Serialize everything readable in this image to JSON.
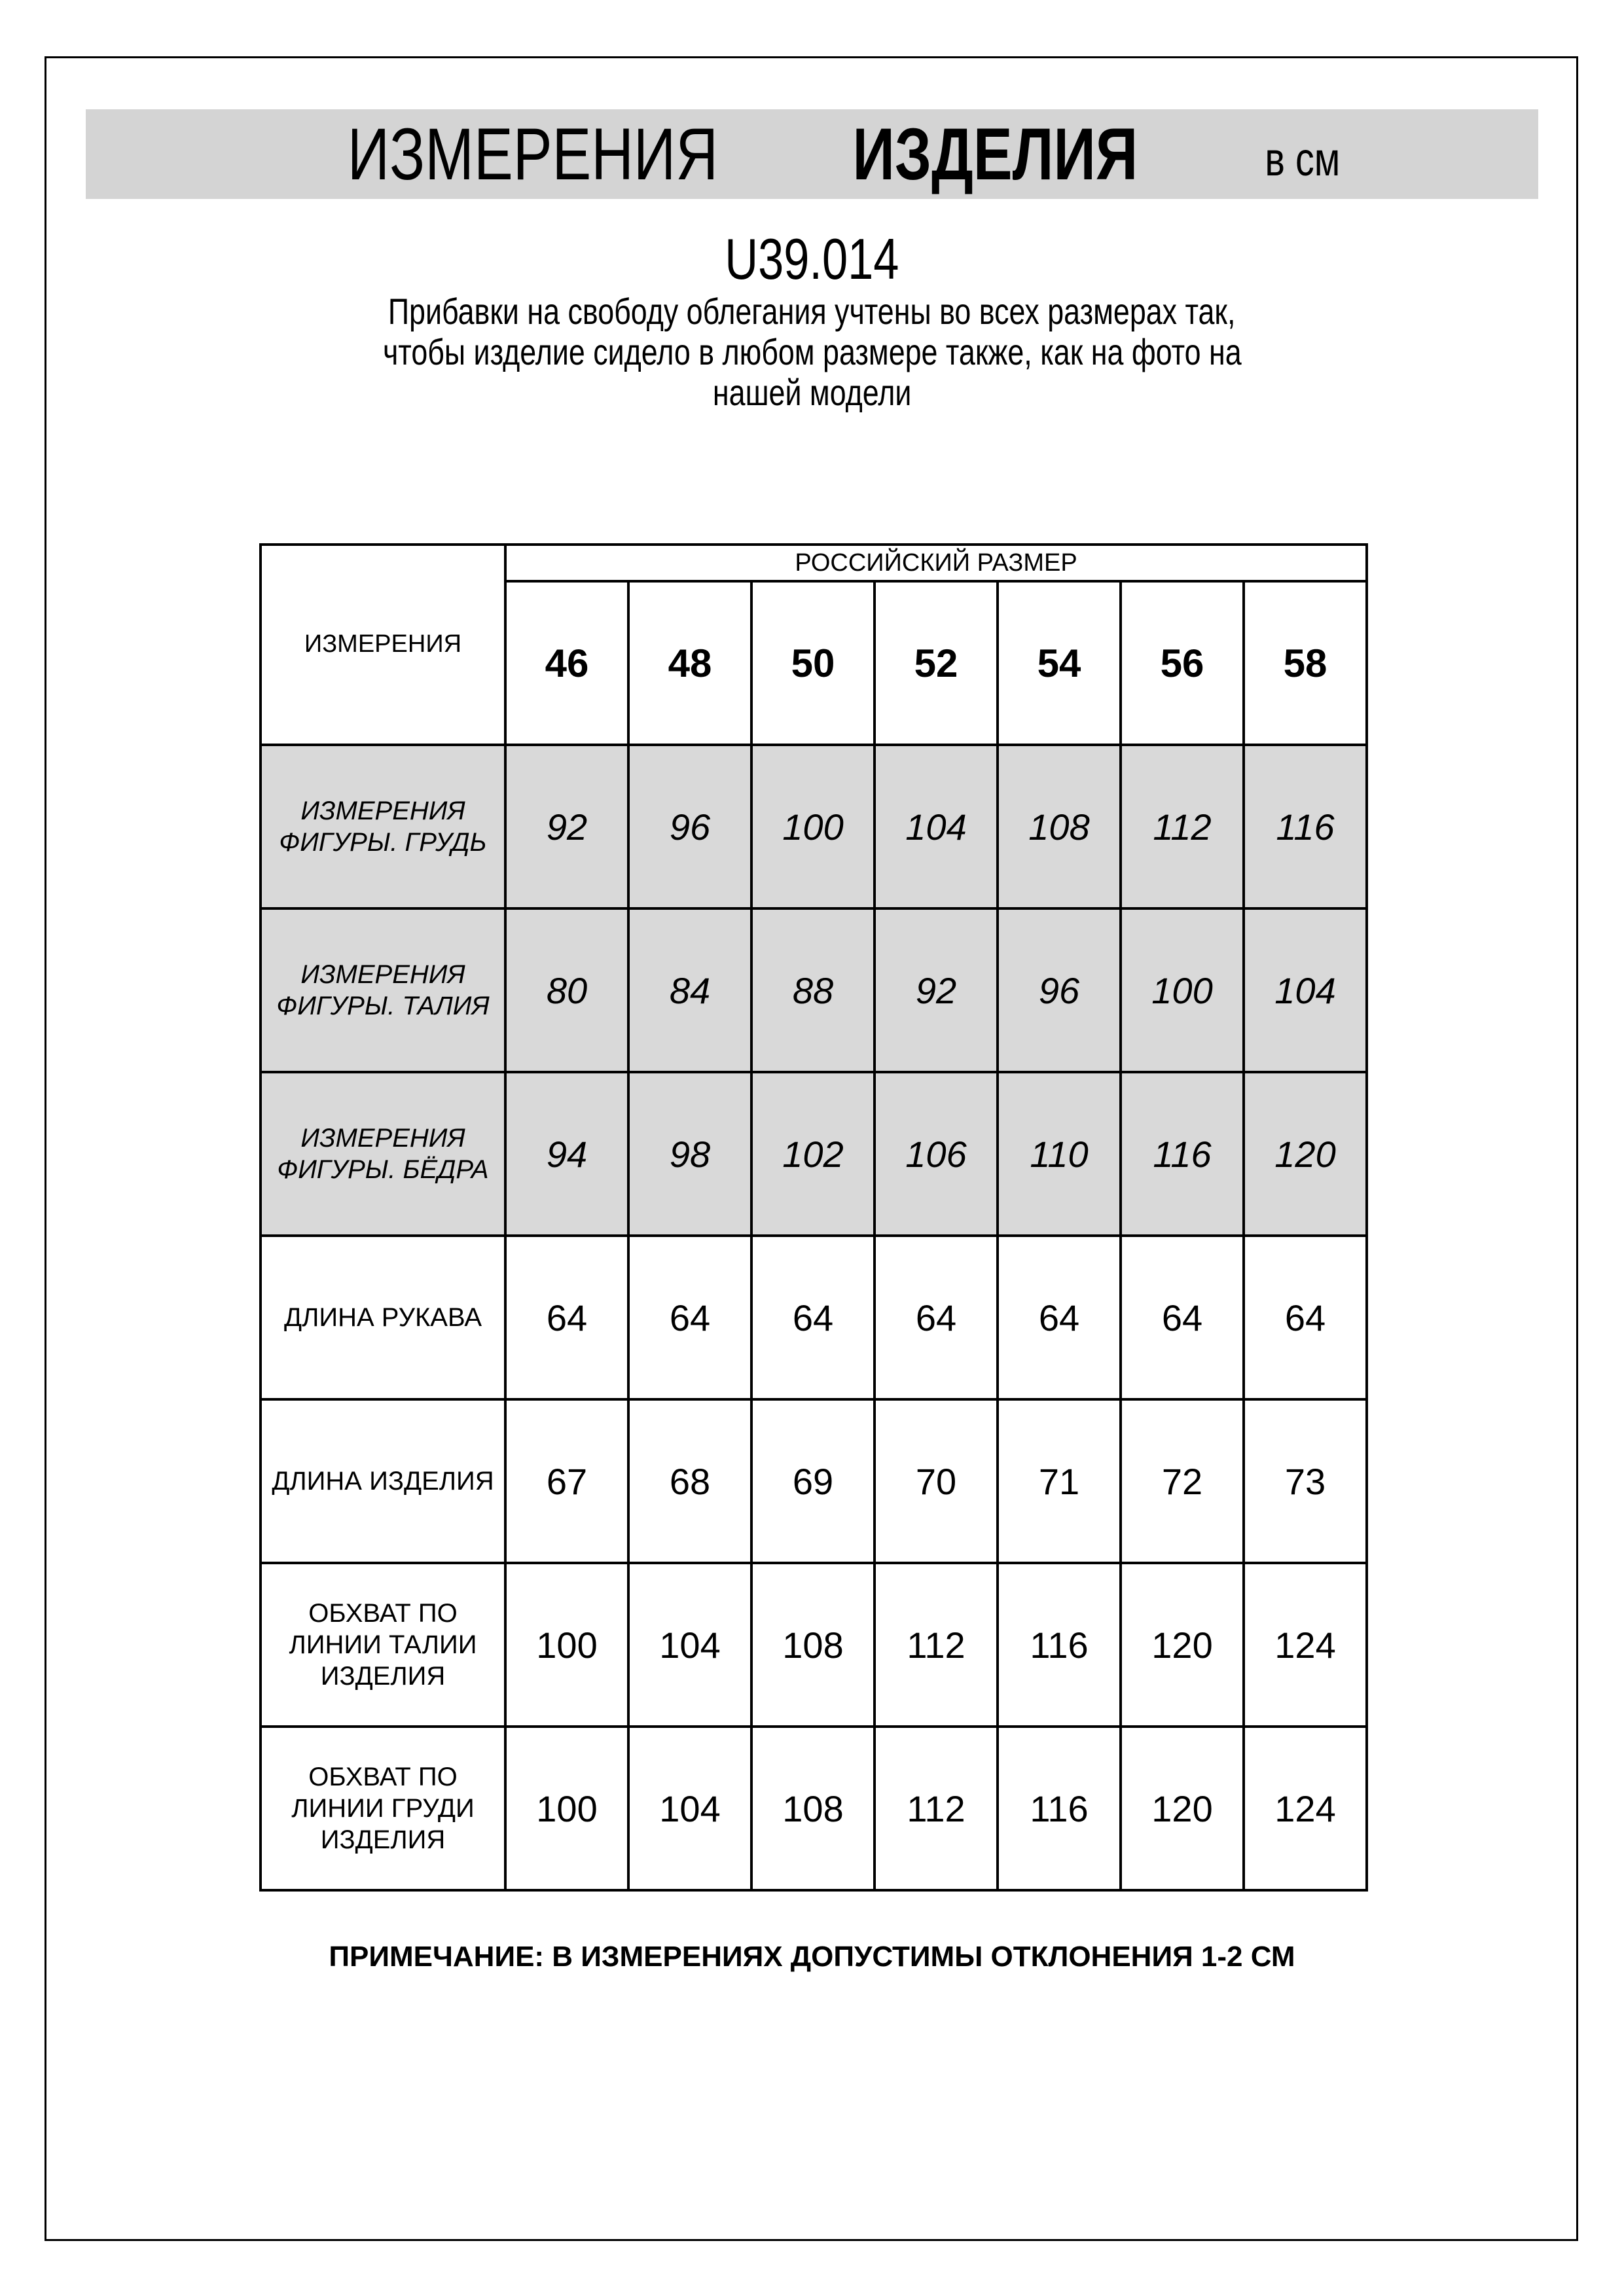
{
  "header": {
    "title_regular": "ИЗМЕРЕНИЯ",
    "title_bold": "ИЗДЕЛИЯ",
    "unit": "в см"
  },
  "article": "U39.014",
  "description": [
    "Прибавки на свободу облегания учтены во всех размерах так,",
    "чтобы изделие сидело в любом размере также, как на фото на",
    "нашей модели"
  ],
  "table": {
    "corner_label": "ИЗМЕРЕНИЯ",
    "size_group_label": "РОССИЙСКИЙ РАЗМЕР",
    "sizes": [
      "46",
      "48",
      "50",
      "52",
      "54",
      "56",
      "58"
    ],
    "rows": [
      {
        "label": "ИЗМЕРЕНИЯ ФИГУРЫ. ГРУДЬ",
        "highlight": true,
        "values": [
          "92",
          "96",
          "100",
          "104",
          "108",
          "112",
          "116"
        ]
      },
      {
        "label": "ИЗМЕРЕНИЯ ФИГУРЫ. ТАЛИЯ",
        "highlight": true,
        "values": [
          "80",
          "84",
          "88",
          "92",
          "96",
          "100",
          "104"
        ]
      },
      {
        "label": "ИЗМЕРЕНИЯ ФИГУРЫ. БЁДРА",
        "highlight": true,
        "values": [
          "94",
          "98",
          "102",
          "106",
          "110",
          "116",
          "120"
        ]
      },
      {
        "label": "ДЛИНА РУКАВА",
        "highlight": false,
        "values": [
          "64",
          "64",
          "64",
          "64",
          "64",
          "64",
          "64"
        ]
      },
      {
        "label": "ДЛИНА ИЗДЕЛИЯ",
        "highlight": false,
        "values": [
          "67",
          "68",
          "69",
          "70",
          "71",
          "72",
          "73"
        ]
      },
      {
        "label": "ОБХВАТ ПО ЛИНИИ ТАЛИИ ИЗДЕЛИЯ",
        "highlight": false,
        "values": [
          "100",
          "104",
          "108",
          "112",
          "116",
          "120",
          "124"
        ]
      },
      {
        "label": "ОБХВАТ ПО ЛИНИИ ГРУДИ ИЗДЕЛИЯ",
        "highlight": false,
        "values": [
          "100",
          "104",
          "108",
          "112",
          "116",
          "120",
          "124"
        ]
      }
    ]
  },
  "note": "ПРИМЕЧАНИЕ: В ИЗМЕРЕНИЯХ ДОПУСТИМЫ ОТКЛОНЕНИЯ 1-2 СМ",
  "colors": {
    "header_bar": "#d4d4d4",
    "highlight_row": "#d9d9d9"
  }
}
